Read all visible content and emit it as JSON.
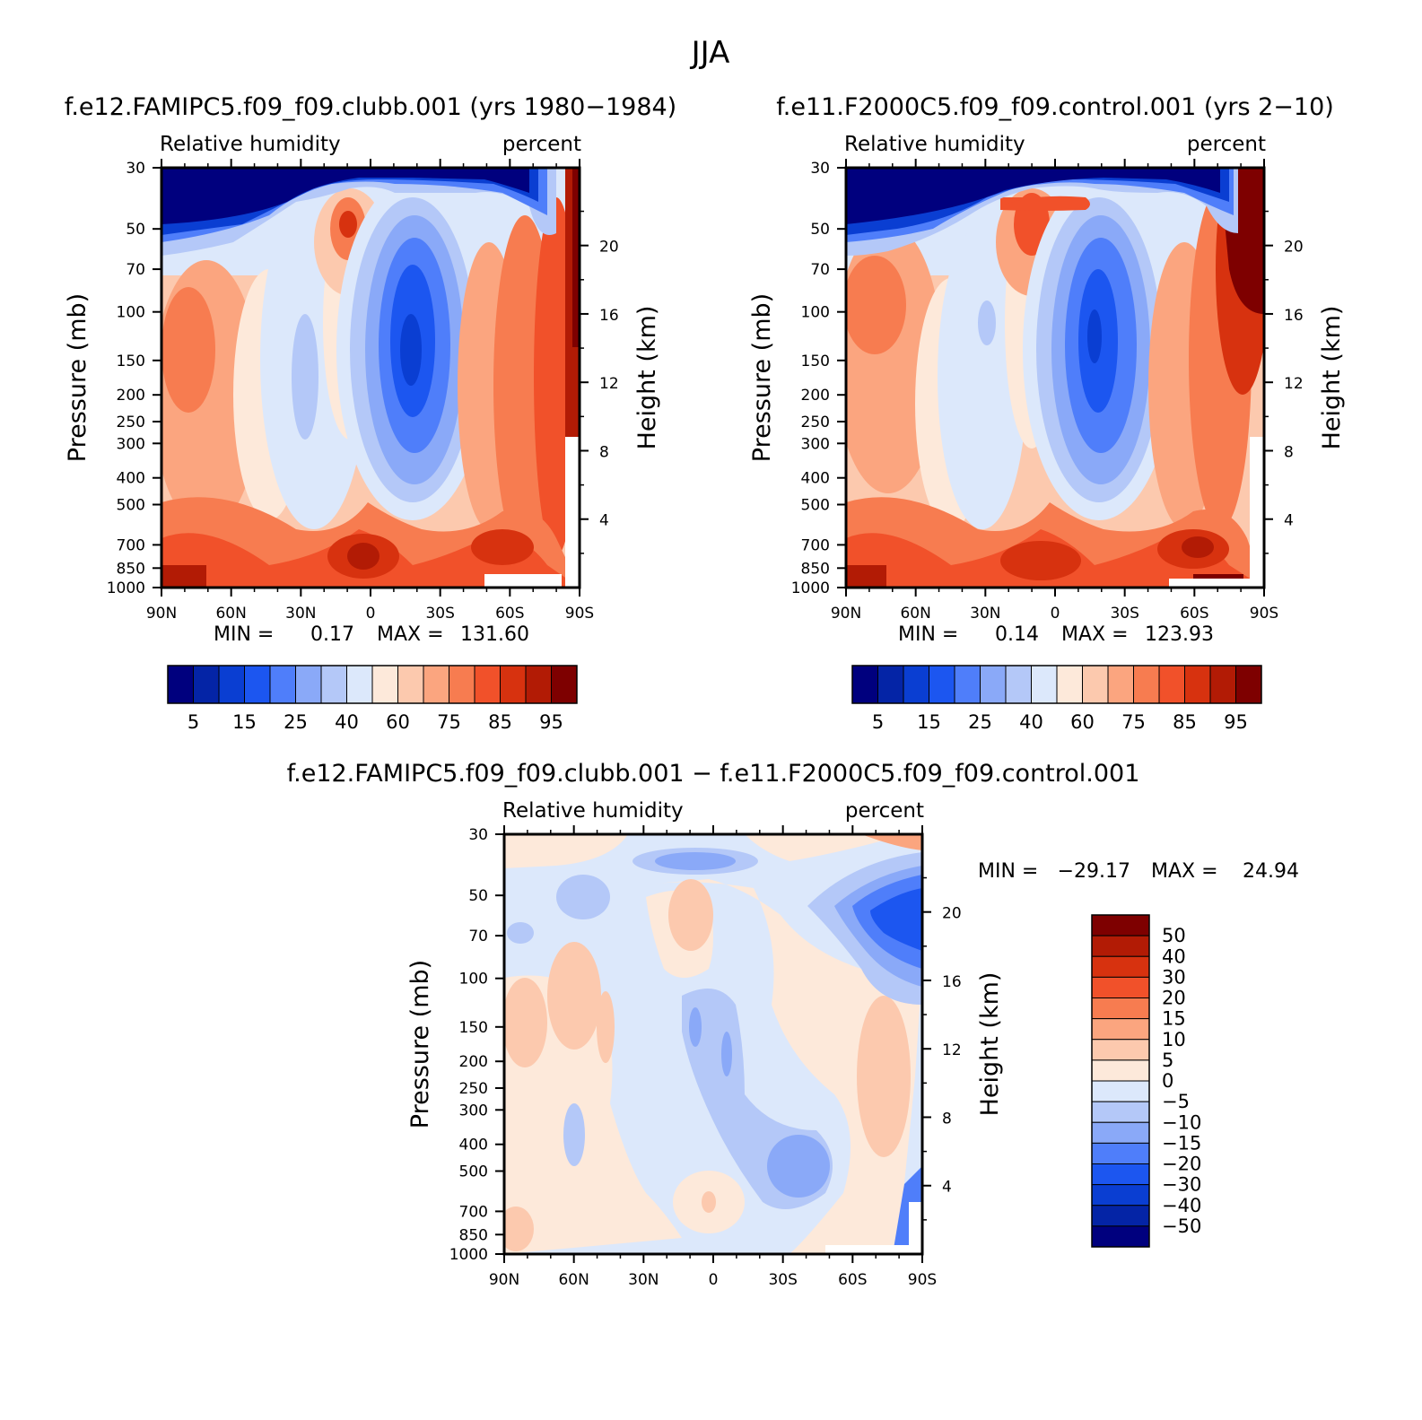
{
  "figure": {
    "title": "JJA"
  },
  "chart_data": [
    {
      "id": "panel1",
      "type": "heatmap",
      "title": "f.e12.FAMIPC5.f09_f09.clubb.001 (yrs 1980−1984)",
      "left_label": "Relative humidity",
      "right_label": "percent",
      "ylabel": "Pressure (mb)",
      "y2label": "Height (km)",
      "x_ticks": [
        "90N",
        "60N",
        "30N",
        "0",
        "30S",
        "60S",
        "90S"
      ],
      "y_ticks": [
        "30",
        "50",
        "70",
        "100",
        "150",
        "200",
        "250",
        "300",
        "400",
        "500",
        "700",
        "850",
        "1000"
      ],
      "y2_ticks": [
        "20",
        "16",
        "12",
        "8",
        "4"
      ],
      "min_label": "MIN =",
      "min_value": "0.17",
      "max_label": "MAX =",
      "max_value": "131.60",
      "colorbar_labels": [
        "5",
        "15",
        "25",
        "40",
        "60",
        "75",
        "85",
        "95"
      ]
    },
    {
      "id": "panel2",
      "type": "heatmap",
      "title": "f.e11.F2000C5.f09_f09.control.001 (yrs 2−10)",
      "left_label": "Relative humidity",
      "right_label": "percent",
      "ylabel": "Pressure (mb)",
      "y2label": "Height (km)",
      "x_ticks": [
        "90N",
        "60N",
        "30N",
        "0",
        "30S",
        "60S",
        "90S"
      ],
      "y_ticks": [
        "30",
        "50",
        "70",
        "100",
        "150",
        "200",
        "250",
        "300",
        "400",
        "500",
        "700",
        "850",
        "1000"
      ],
      "y2_ticks": [
        "20",
        "16",
        "12",
        "8",
        "4"
      ],
      "min_label": "MIN =",
      "min_value": "0.14",
      "max_label": "MAX =",
      "max_value": "123.93",
      "colorbar_labels": [
        "5",
        "15",
        "25",
        "40",
        "60",
        "75",
        "85",
        "95"
      ]
    },
    {
      "id": "panel3",
      "type": "heatmap",
      "title": "f.e12.FAMIPC5.f09_f09.clubb.001 − f.e11.F2000C5.f09_f09.control.001",
      "left_label": "Relative humidity",
      "right_label": "percent",
      "ylabel": "Pressure (mb)",
      "y2label": "Height (km)",
      "x_ticks": [
        "90N",
        "60N",
        "30N",
        "0",
        "30S",
        "60S",
        "90S"
      ],
      "y_ticks": [
        "30",
        "50",
        "70",
        "100",
        "150",
        "200",
        "250",
        "300",
        "400",
        "500",
        "700",
        "850",
        "1000"
      ],
      "y2_ticks": [
        "20",
        "16",
        "12",
        "8",
        "4"
      ],
      "min_label": "MIN =",
      "min_value": "−29.17",
      "max_label": "MAX =",
      "max_value": "24.94",
      "colorbar_labels": [
        "50",
        "40",
        "30",
        "20",
        "15",
        "10",
        "5",
        "0",
        "−5",
        "−10",
        "−15",
        "−20",
        "−30",
        "−40",
        "−50"
      ]
    }
  ],
  "colors": {
    "abs_palette": [
      "#00007e",
      "#0424a6",
      "#0a3ed2",
      "#1c56f0",
      "#4f7efa",
      "#8aa9f8",
      "#b4c8f8",
      "#dce8fb",
      "#fde9da",
      "#fcc9ae",
      "#fba57f",
      "#f77c50",
      "#f1512a",
      "#d7320f",
      "#b21b05",
      "#7e0000"
    ],
    "diff_palette": [
      "#7e0000",
      "#b21b05",
      "#d7320f",
      "#f1512a",
      "#f77c50",
      "#fba57f",
      "#fcc9ae",
      "#fde9da",
      "#dce8fb",
      "#b4c8f8",
      "#8aa9f8",
      "#4f7efa",
      "#1c56f0",
      "#0a3ed2",
      "#0424a6",
      "#00007e"
    ]
  }
}
